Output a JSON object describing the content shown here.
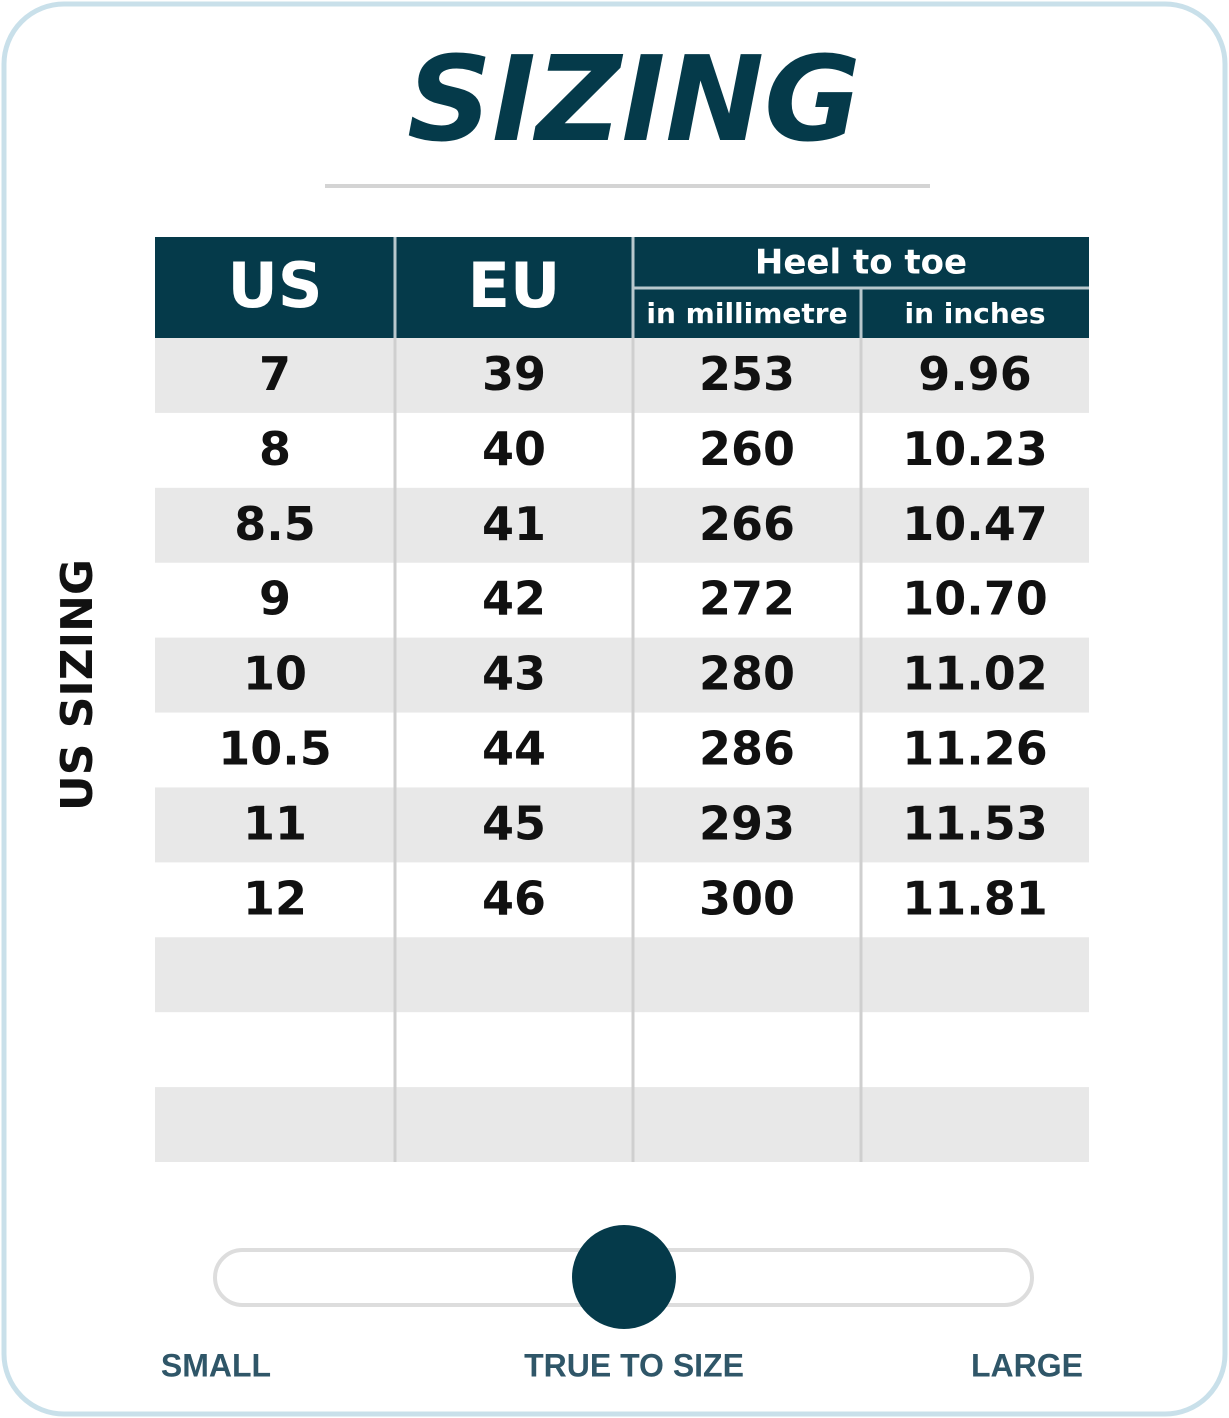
{
  "title": "SIZING",
  "side_label": "US SIZING",
  "table": {
    "header": {
      "us": "US",
      "eu": "EU",
      "heel_to_toe": "Heel to toe",
      "millimetre": "in millimetre",
      "inches": "in inches"
    },
    "rows": [
      [
        "7",
        "39",
        "253",
        "9.96"
      ],
      [
        "8",
        "40",
        "260",
        "10.23"
      ],
      [
        "8.5",
        "41",
        "266",
        "10.47"
      ],
      [
        "9",
        "42",
        "272",
        "10.70"
      ],
      [
        "10",
        "43",
        "280",
        "11.02"
      ],
      [
        "10.5",
        "44",
        "286",
        "11.26"
      ],
      [
        "11",
        "45",
        "293",
        "11.53"
      ],
      [
        "12",
        "46",
        "300",
        "11.81"
      ]
    ]
  },
  "scale": {
    "small": "SMALL",
    "true_to_size": "TRUE TO SIZE",
    "large": "LARGE"
  }
}
